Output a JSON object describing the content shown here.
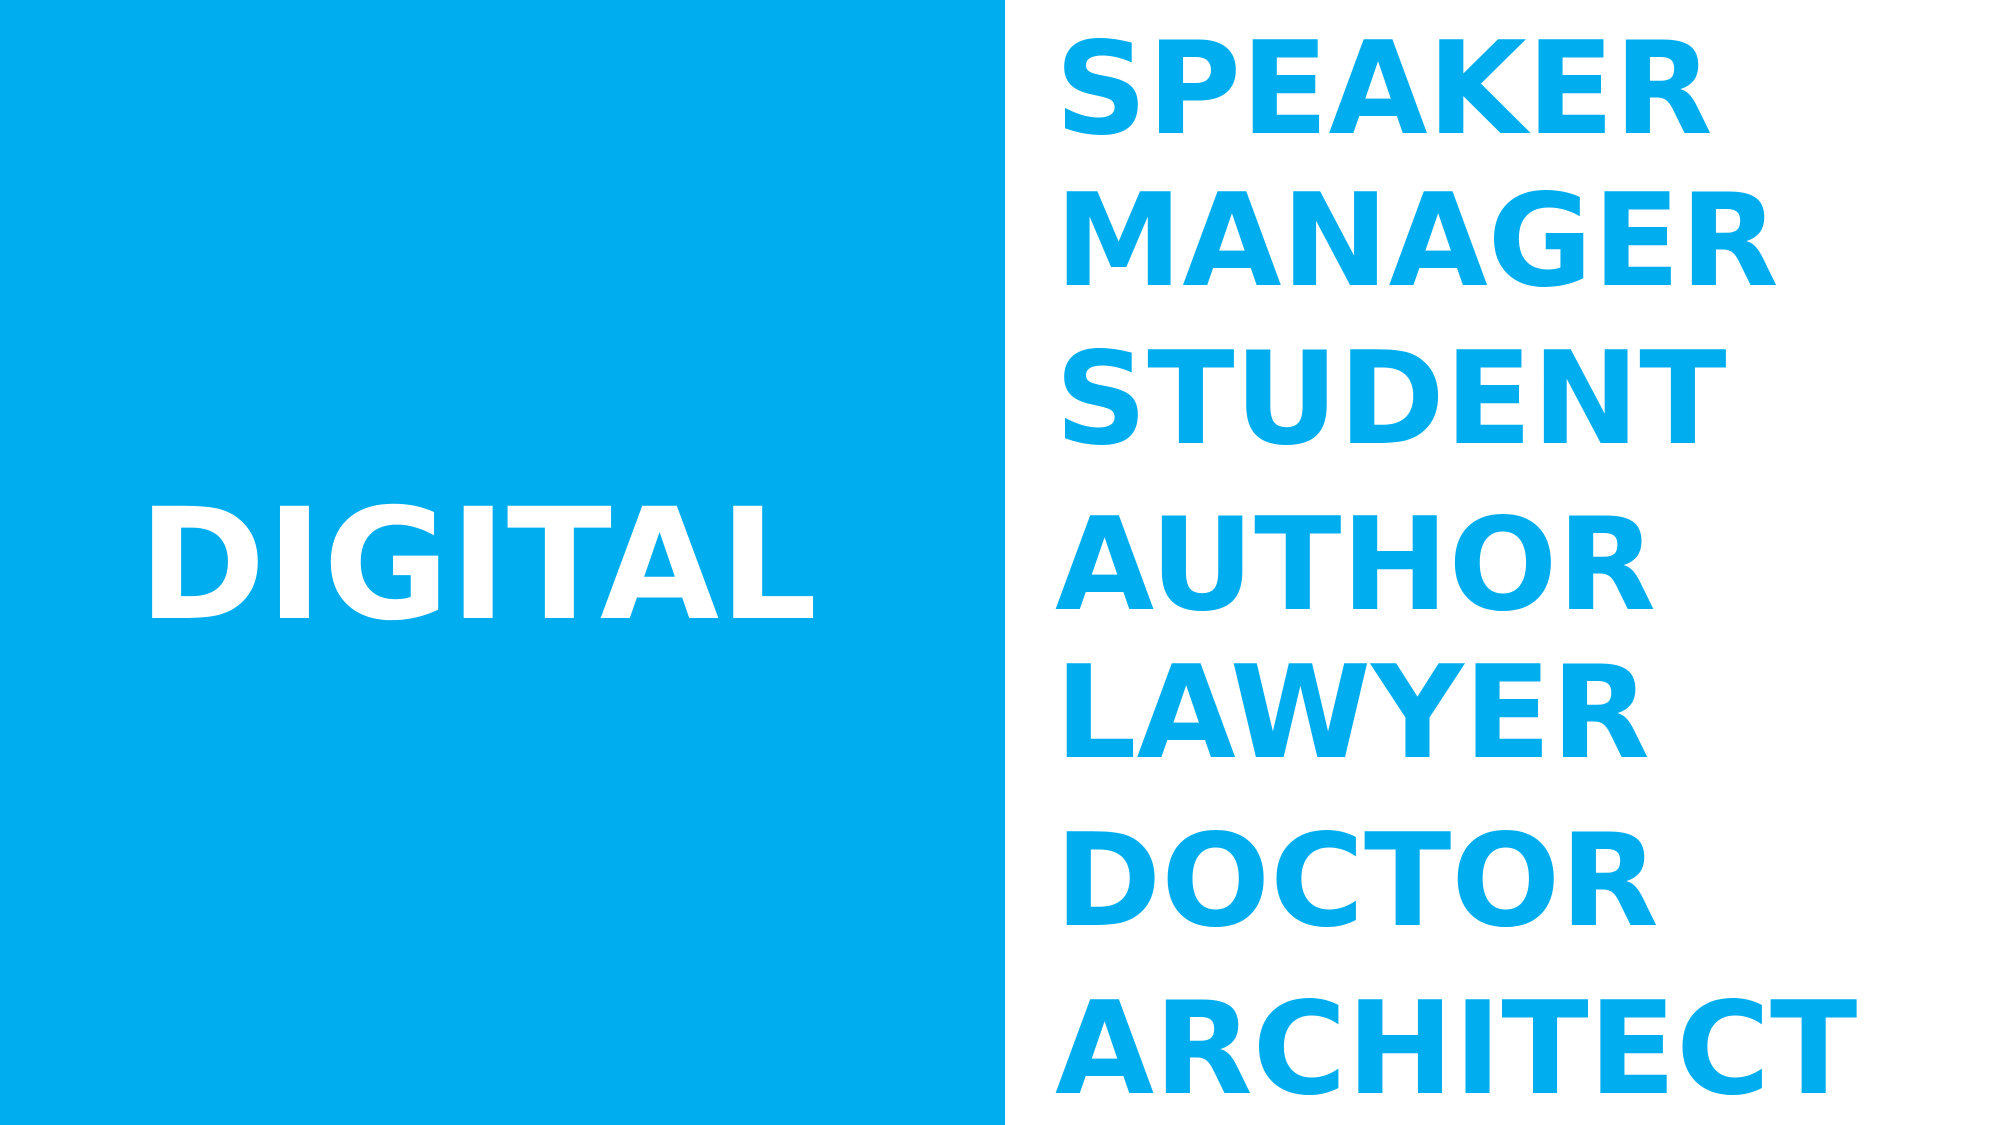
{
  "colors": {
    "accent": "#00aeef",
    "background": "#ffffff",
    "main_text": "#ffffff"
  },
  "main_word": "DIGITAL",
  "words": [
    "SPEAKER",
    "MANAGER",
    "STUDENT",
    "AUTHOR",
    "LAWYER",
    "DOCTOR",
    "ARCHITECT"
  ]
}
